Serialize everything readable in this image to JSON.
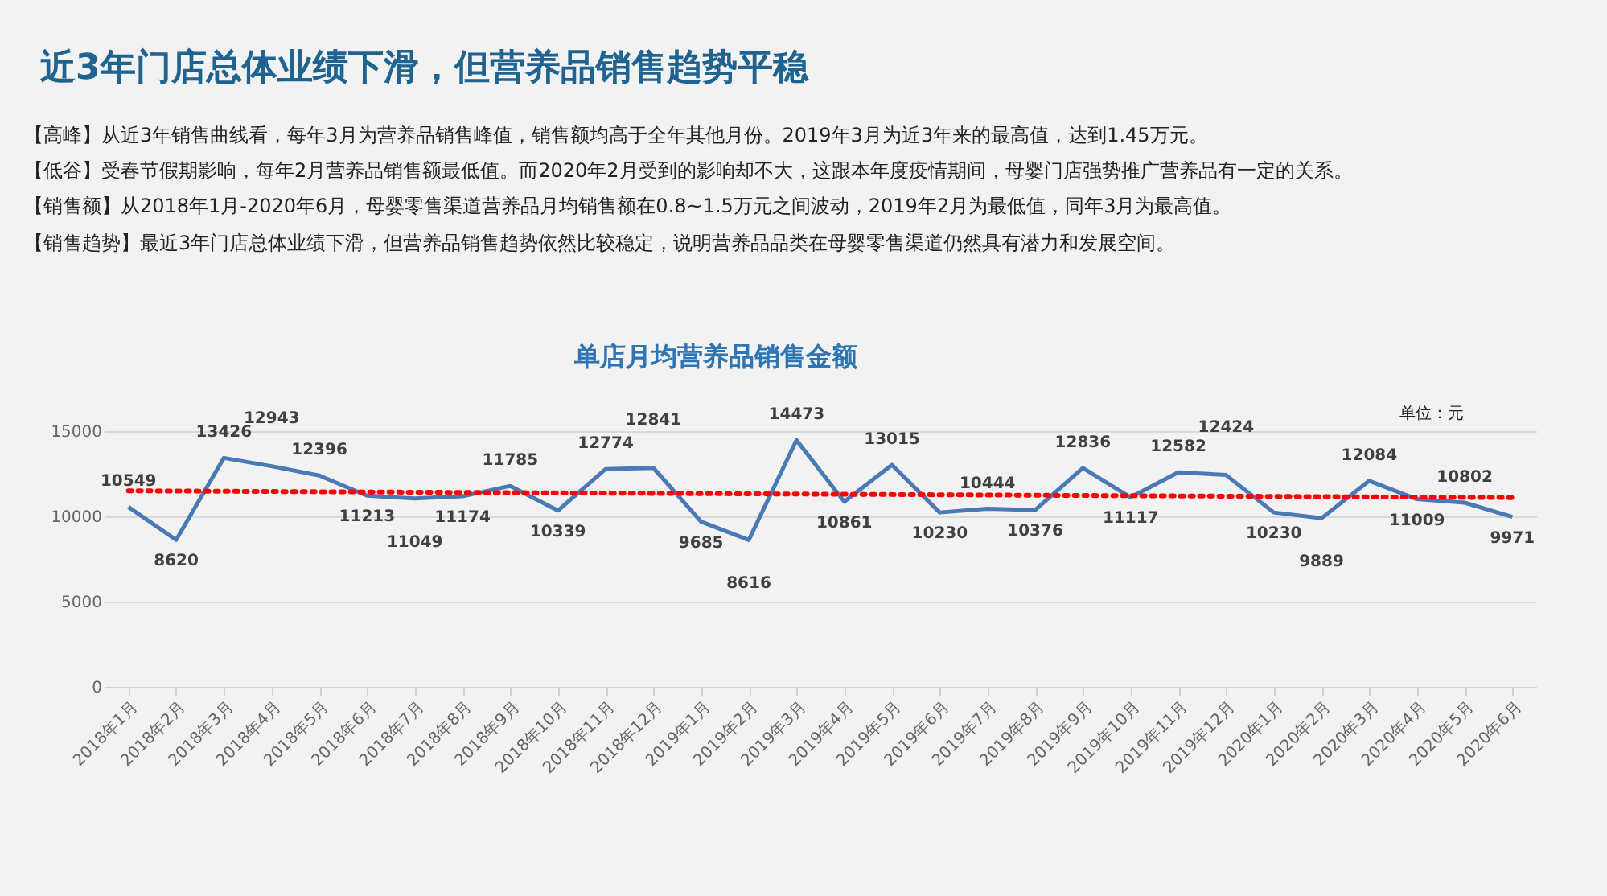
{
  "chart_data": {
    "type": "line",
    "title": "近3年门店总体业绩下滑，但营养品销售趋势平稳",
    "subtitle": "单店月均营养品销售金额",
    "annotations": [
      "【高峰】从近3年销售曲线看，每年3月为营养品销售峰值，销售额均高于全年其他月份。2019年3月为近3年来的最高值，达到1.45万元。",
      "【低谷】受春节假期影响，每年2月营养品销售额最低值。而2020年2月受到的影响却不大，这跟本年度疫情期间，母婴门店强势推广营养品有一定的关系。",
      "【销售额】从2018年1月-2020年6月，母婴零售渠道营养品月均销售额在0.8~1.5万元之间波动，2019年2月为最低值，同年3月为最高值。",
      "【销售趋势】最近3年门店总体业绩下滑，但营养品销售趋势依然比较稳定，说明营养品品类在母婴零售渠道仍然具有潜力和发展空间。",
      "单位：元"
    ],
    "categories": [
      "2018年1月",
      "2018年2月",
      "2018年3月",
      "2018年4月",
      "2018年5月",
      "2018年6月",
      "2018年7月",
      "2018年8月",
      "2018年9月",
      "2018年10月",
      "2018年11月",
      "2018年12月",
      "2019年1月",
      "2019年2月",
      "2019年3月",
      "2019年4月",
      "2019年5月",
      "2019年6月",
      "2019年7月",
      "2019年8月",
      "2019年9月",
      "2019年10月",
      "2019年11月",
      "2019年12月",
      "2020年1月",
      "2020年2月",
      "2020年3月",
      "2020年4月",
      "2020年5月",
      "2020年6月"
    ],
    "series": [
      {
        "color": "#4a7ab5",
        "values": [
          10549,
          8620,
          13426,
          12943,
          12396,
          11213,
          11049,
          11174,
          11785,
          10339,
          12774,
          12841,
          9685,
          8616,
          14473,
          10861,
          13015,
          10230,
          10444,
          10376,
          12836,
          11117,
          12582,
          12424,
          10230,
          9889,
          12084,
          11009,
          10802,
          9971
        ],
        "value_labels": [
          "10549",
          "8620",
          "13426",
          "12943",
          "12396",
          "11213",
          "11049",
          "11174",
          "11785",
          "10339",
          "12774",
          "12841",
          "9685",
          "8616",
          "14473",
          "10861",
          "13015",
          "10230",
          "10444",
          "10376",
          "12836",
          "11117",
          "12582",
          "12424",
          "10230",
          "9889",
          "12084",
          "11009",
          "10802",
          "9971"
        ]
      },
      {
        "type": "line",
        "color": "#ff0000",
        "line_style": "dotted",
        "x": [
          "2018年1月",
          "2020年6月"
        ],
        "values": [
          11500,
          11100
        ]
      }
    ],
    "ylim": [
      0,
      15000
    ],
    "yticks": [
      0,
      5000,
      10000,
      15000
    ],
    "grid": "y"
  }
}
